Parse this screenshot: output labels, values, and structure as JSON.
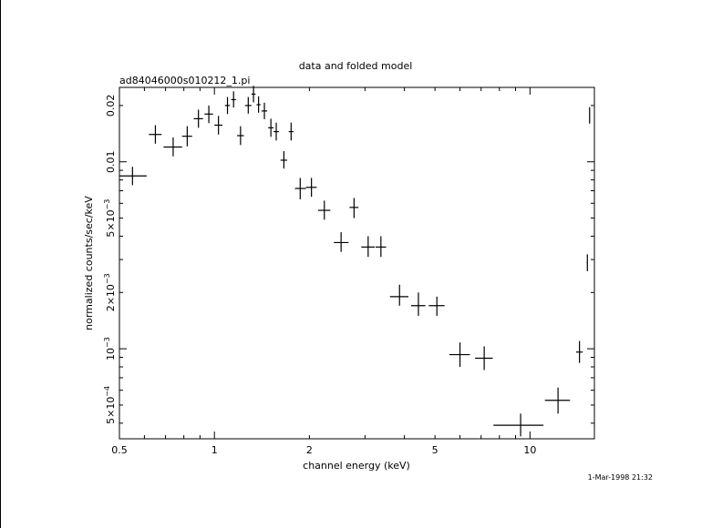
{
  "chart_data": {
    "type": "scatter",
    "title": "data and folded model",
    "subtitle": "ad84046000s010212_1.pi",
    "xlabel": "channel energy (keV)",
    "ylabel": "normalized counts/sec/keV",
    "xscale": "log",
    "yscale": "log",
    "xlim": [
      0.5,
      16.0
    ],
    "ylim": [
      0.00033,
      0.025
    ],
    "x_tick_labels": [
      {
        "value": 0.5,
        "label": "0.5"
      },
      {
        "value": 1,
        "label": "1"
      },
      {
        "value": 2,
        "label": "2"
      },
      {
        "value": 5,
        "label": "5"
      },
      {
        "value": 10,
        "label": "10"
      }
    ],
    "y_tick_labels": [
      {
        "value": 0.0005,
        "label": "5×10",
        "exp": "−4"
      },
      {
        "value": 0.001,
        "label": "10",
        "exp": "−3"
      },
      {
        "value": 0.002,
        "label": "2×10",
        "exp": "−3"
      },
      {
        "value": 0.005,
        "label": "5×10",
        "exp": "−3"
      },
      {
        "value": 0.01,
        "label": "0.01",
        "exp": ""
      },
      {
        "value": 0.02,
        "label": "0.02",
        "exp": ""
      }
    ],
    "points": [
      {
        "x": 0.55,
        "y": 0.0084,
        "xlo": 0.5,
        "xhi": 0.61,
        "ylo": 0.0075,
        "yhi": 0.0094
      },
      {
        "x": 0.65,
        "y": 0.014,
        "xlo": 0.62,
        "xhi": 0.68,
        "ylo": 0.0125,
        "yhi": 0.0157
      },
      {
        "x": 0.74,
        "y": 0.012,
        "xlo": 0.69,
        "xhi": 0.79,
        "ylo": 0.0107,
        "yhi": 0.0135
      },
      {
        "x": 0.82,
        "y": 0.0137,
        "xlo": 0.79,
        "xhi": 0.85,
        "ylo": 0.0121,
        "yhi": 0.0155
      },
      {
        "x": 0.89,
        "y": 0.017,
        "xlo": 0.86,
        "xhi": 0.92,
        "ylo": 0.0152,
        "yhi": 0.019
      },
      {
        "x": 0.96,
        "y": 0.018,
        "xlo": 0.93,
        "xhi": 0.99,
        "ylo": 0.0161,
        "yhi": 0.02
      },
      {
        "x": 1.03,
        "y": 0.0157,
        "xlo": 1.0,
        "xhi": 1.06,
        "ylo": 0.014,
        "yhi": 0.0176
      },
      {
        "x": 1.1,
        "y": 0.02,
        "xlo": 1.08,
        "xhi": 1.12,
        "ylo": 0.018,
        "yhi": 0.0222
      },
      {
        "x": 1.15,
        "y": 0.0215,
        "xlo": 1.13,
        "xhi": 1.17,
        "ylo": 0.0195,
        "yhi": 0.0238
      },
      {
        "x": 1.21,
        "y": 0.0138,
        "xlo": 1.18,
        "xhi": 1.24,
        "ylo": 0.0123,
        "yhi": 0.0155
      },
      {
        "x": 1.28,
        "y": 0.02,
        "xlo": 1.25,
        "xhi": 1.31,
        "ylo": 0.0181,
        "yhi": 0.0222
      },
      {
        "x": 1.33,
        "y": 0.023,
        "xlo": 1.31,
        "xhi": 1.35,
        "ylo": 0.0208,
        "yhi": 0.0255
      },
      {
        "x": 1.38,
        "y": 0.0202,
        "xlo": 1.36,
        "xhi": 1.4,
        "ylo": 0.0183,
        "yhi": 0.0224
      },
      {
        "x": 1.44,
        "y": 0.0187,
        "xlo": 1.41,
        "xhi": 1.47,
        "ylo": 0.0169,
        "yhi": 0.0207
      },
      {
        "x": 1.51,
        "y": 0.0152,
        "xlo": 1.48,
        "xhi": 1.54,
        "ylo": 0.0136,
        "yhi": 0.017
      },
      {
        "x": 1.57,
        "y": 0.0145,
        "xlo": 1.54,
        "xhi": 1.6,
        "ylo": 0.013,
        "yhi": 0.0162
      },
      {
        "x": 1.66,
        "y": 0.0102,
        "xlo": 1.62,
        "xhi": 1.7,
        "ylo": 0.0092,
        "yhi": 0.0114
      },
      {
        "x": 1.75,
        "y": 0.0145,
        "xlo": 1.72,
        "xhi": 1.78,
        "ylo": 0.013,
        "yhi": 0.0162
      },
      {
        "x": 1.87,
        "y": 0.0072,
        "xlo": 1.8,
        "xhi": 1.95,
        "ylo": 0.0063,
        "yhi": 0.0082
      },
      {
        "x": 2.03,
        "y": 0.0073,
        "xlo": 1.95,
        "xhi": 2.11,
        "ylo": 0.0065,
        "yhi": 0.0082
      },
      {
        "x": 2.23,
        "y": 0.0055,
        "xlo": 2.13,
        "xhi": 2.33,
        "ylo": 0.0049,
        "yhi": 0.0062
      },
      {
        "x": 2.52,
        "y": 0.0037,
        "xlo": 2.39,
        "xhi": 2.66,
        "ylo": 0.0033,
        "yhi": 0.0042
      },
      {
        "x": 2.77,
        "y": 0.0057,
        "xlo": 2.68,
        "xhi": 2.86,
        "ylo": 0.005,
        "yhi": 0.0064
      },
      {
        "x": 3.07,
        "y": 0.0035,
        "xlo": 2.92,
        "xhi": 3.22,
        "ylo": 0.0031,
        "yhi": 0.004
      },
      {
        "x": 3.37,
        "y": 0.0035,
        "xlo": 3.24,
        "xhi": 3.5,
        "ylo": 0.0031,
        "yhi": 0.004
      },
      {
        "x": 3.86,
        "y": 0.0019,
        "xlo": 3.6,
        "xhi": 4.12,
        "ylo": 0.0017,
        "yhi": 0.0022
      },
      {
        "x": 4.43,
        "y": 0.0017,
        "xlo": 4.2,
        "xhi": 4.66,
        "ylo": 0.0015,
        "yhi": 0.002
      },
      {
        "x": 5.07,
        "y": 0.0017,
        "xlo": 4.78,
        "xhi": 5.36,
        "ylo": 0.0015,
        "yhi": 0.0019
      },
      {
        "x": 6.0,
        "y": 0.00093,
        "xlo": 5.55,
        "xhi": 6.45,
        "ylo": 0.0008,
        "yhi": 0.00108
      },
      {
        "x": 7.16,
        "y": 0.00089,
        "xlo": 6.7,
        "xhi": 7.62,
        "ylo": 0.00077,
        "yhi": 0.00103
      },
      {
        "x": 9.34,
        "y": 0.00039,
        "xlo": 7.66,
        "xhi": 11.03,
        "ylo": 0.00034,
        "yhi": 0.00045
      },
      {
        "x": 12.27,
        "y": 0.00053,
        "xlo": 11.15,
        "xhi": 13.39,
        "ylo": 0.00045,
        "yhi": 0.00062
      },
      {
        "x": 14.35,
        "y": 0.00096,
        "xlo": 14.0,
        "xhi": 14.7,
        "ylo": 0.00084,
        "yhi": 0.0011
      },
      {
        "x": 15.2,
        "y": 0.0029,
        "xlo": 15.15,
        "xhi": 15.25,
        "ylo": 0.0026,
        "yhi": 0.0032
      },
      {
        "x": 15.45,
        "y": 0.0177,
        "xlo": 15.42,
        "xhi": 15.48,
        "ylo": 0.016,
        "yhi": 0.0196
      }
    ]
  },
  "footer": {
    "timestamp": "1-Mar-1998 21:32"
  }
}
